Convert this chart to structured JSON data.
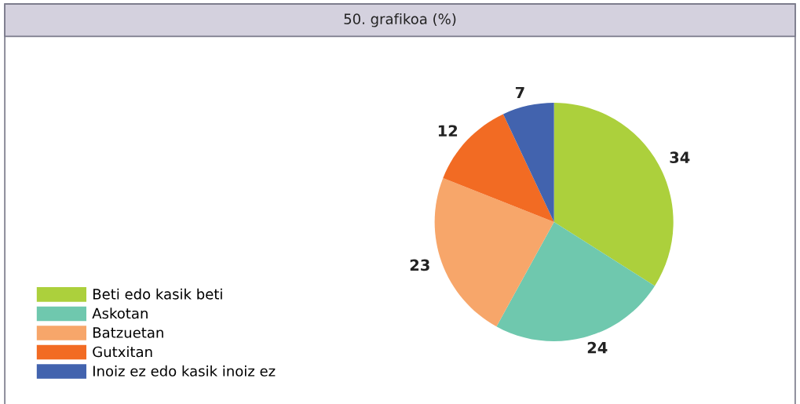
{
  "chart_data": {
    "type": "pie",
    "title": "50. grafikoa (%)",
    "categories": [
      "Beti edo kasik beti",
      "Askotan",
      "Batzuetan",
      "Gutxitan",
      "Inoiz ez edo kasik inoiz ez"
    ],
    "values": [
      34,
      24,
      23,
      12,
      7
    ],
    "colors": [
      "#acd03c",
      "#6fc8ae",
      "#f7a66a",
      "#f26b23",
      "#4263ae"
    ],
    "data_labels": true,
    "legend": "bottom left"
  }
}
